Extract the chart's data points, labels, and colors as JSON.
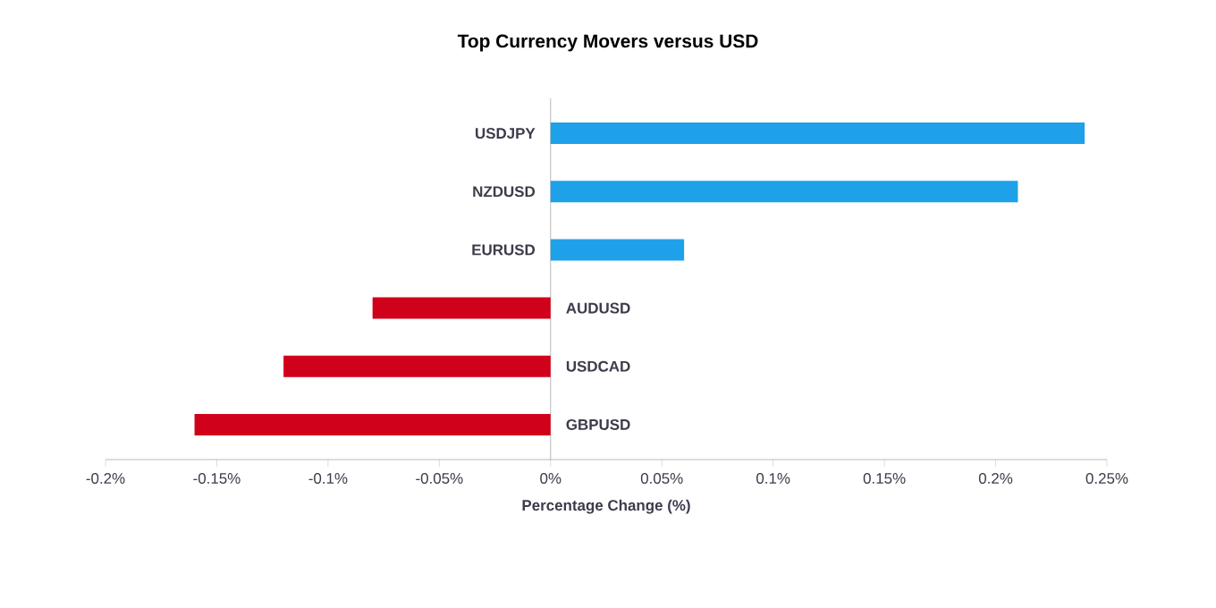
{
  "chart_data": {
    "type": "bar",
    "orientation": "horizontal",
    "title": "Top Currency Movers versus USD",
    "xlabel": "Percentage Change (%)",
    "categories": [
      "USDJPY",
      "NZDUSD",
      "EURUSD",
      "AUDUSD",
      "USDCAD",
      "GBPUSD"
    ],
    "values": [
      0.24,
      0.21,
      0.06,
      -0.08,
      -0.12,
      -0.16
    ],
    "colors": [
      "#1ea1e8",
      "#1ea1e8",
      "#1ea1e8",
      "#d0021b",
      "#d0021b",
      "#d0021b"
    ],
    "xlim": [
      -0.2,
      0.25
    ],
    "xticks": [
      {
        "value": -0.2,
        "label": "-0.2%"
      },
      {
        "value": -0.15,
        "label": "-0.15%"
      },
      {
        "value": -0.1,
        "label": "-0.1%"
      },
      {
        "value": -0.05,
        "label": "-0.05%"
      },
      {
        "value": 0,
        "label": "0%"
      },
      {
        "value": 0.05,
        "label": "0.05%"
      },
      {
        "value": 0.1,
        "label": "0.1%"
      },
      {
        "value": 0.15,
        "label": "0.15%"
      },
      {
        "value": 0.2,
        "label": "0.2%"
      },
      {
        "value": 0.25,
        "label": "0.25%"
      }
    ],
    "data_labels": false
  }
}
